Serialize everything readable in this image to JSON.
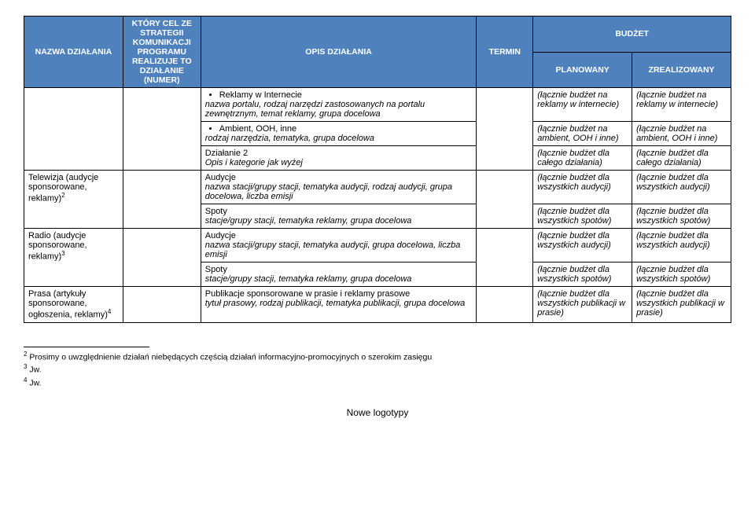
{
  "headers": {
    "nazwa": "NAZWA DZIAŁANIA",
    "cel": "KTÓRY CEL ZE STRATEGII KOMUNIKACJI PROGRAMU REALIZUJE TO DZIAŁANIE (NUMER)",
    "opis": "OPIS DZIAŁANIA",
    "termin": "TERMIN",
    "budzet": "BUDŻET",
    "planowany": "PLANOWANY",
    "zrealizowany": "ZREALIZOWANY"
  },
  "rows": {
    "r1": {
      "opis_b1": "Reklamy w Internecie",
      "opis_i1": "nazwa portalu, rodzaj narzędzi zastosowanych na portalu zewnętrznym, temat reklamy, grupa docelowa",
      "plan": "(łącznie budżet na reklamy w internecie)",
      "zreal": "(łącznie budżet na reklamy w internecie)"
    },
    "r2": {
      "opis_b1": "Ambient, OOH, inne",
      "opis_i1": "rodzaj narzędzia, tematyka, grupa docelowa",
      "plan": "(łącznie budżet na ambient, OOH i inne)",
      "zreal": "(łącznie budżet na ambient, OOH i inne)"
    },
    "r3": {
      "opis1": "Działanie 2",
      "opis2": "Opis i kategorie jak wyżej",
      "plan": "(łącznie budżet dla całego działania)",
      "zreal": "(łącznie budżet dla całego działania)"
    },
    "r4": {
      "nazwa1": "Telewizja (audycje sponsorowane, reklamy)",
      "nazwa1_sup": "2",
      "opis1": "Audycje",
      "opis2": "nazwa stacji/grupy stacji, tematyka audycji, rodzaj audycji, grupa docelowa, liczba emisji",
      "plan": "(łącznie budżet dla wszystkich audycji)",
      "zreal": "(łącznie budżet dla wszystkich audycji)"
    },
    "r5": {
      "opis1": "Spoty",
      "opis2": "stacje/grupy stacji, tematyka reklamy, grupa docelowa",
      "plan": "(łącznie budżet dla wszystkich spotów)",
      "zreal": "(łącznie budżet dla wszystkich spotów)"
    },
    "r6": {
      "nazwa1": "Radio (audycje sponsorowane, reklamy)",
      "nazwa1_sup": "3",
      "opis1": "Audycje",
      "opis2": "nazwa stacji/grupy stacji, tematyka audycji, grupa docelowa, liczba emisji",
      "plan": "(łącznie budżet dla wszystkich audycji)",
      "zreal": "(łącznie budżet dla wszystkich audycji)"
    },
    "r7": {
      "opis1": "Spoty",
      "opis2": "stacje/grupy stacji, tematyka reklamy, grupa docelowa",
      "plan": "(łącznie budżet dla wszystkich spotów)",
      "zreal": "(łącznie budżet dla wszystkich spotów)"
    },
    "r8": {
      "nazwa1": "Prasa (artykuły sponsorowane, ogłoszenia, reklamy)",
      "nazwa1_sup": "4",
      "opis1": "Publikacje sponsorowane w prasie i reklamy prasowe",
      "opis2": "tytuł prasowy, rodzaj publikacji, tematyka publikacji, grupa docelowa",
      "plan": "(łącznie budżet dla wszystkich publikacji w prasie)",
      "zreal": "(łącznie budżet dla wszystkich publikacji w prasie)"
    }
  },
  "footnotes": {
    "f2": "Prosimy o uwzględnienie działań niebędących częścią działań informacyjno-promocyjnych o szerokim zasięgu",
    "f3": "Jw.",
    "f4": "Jw."
  },
  "footer": "Nowe logotypy"
}
